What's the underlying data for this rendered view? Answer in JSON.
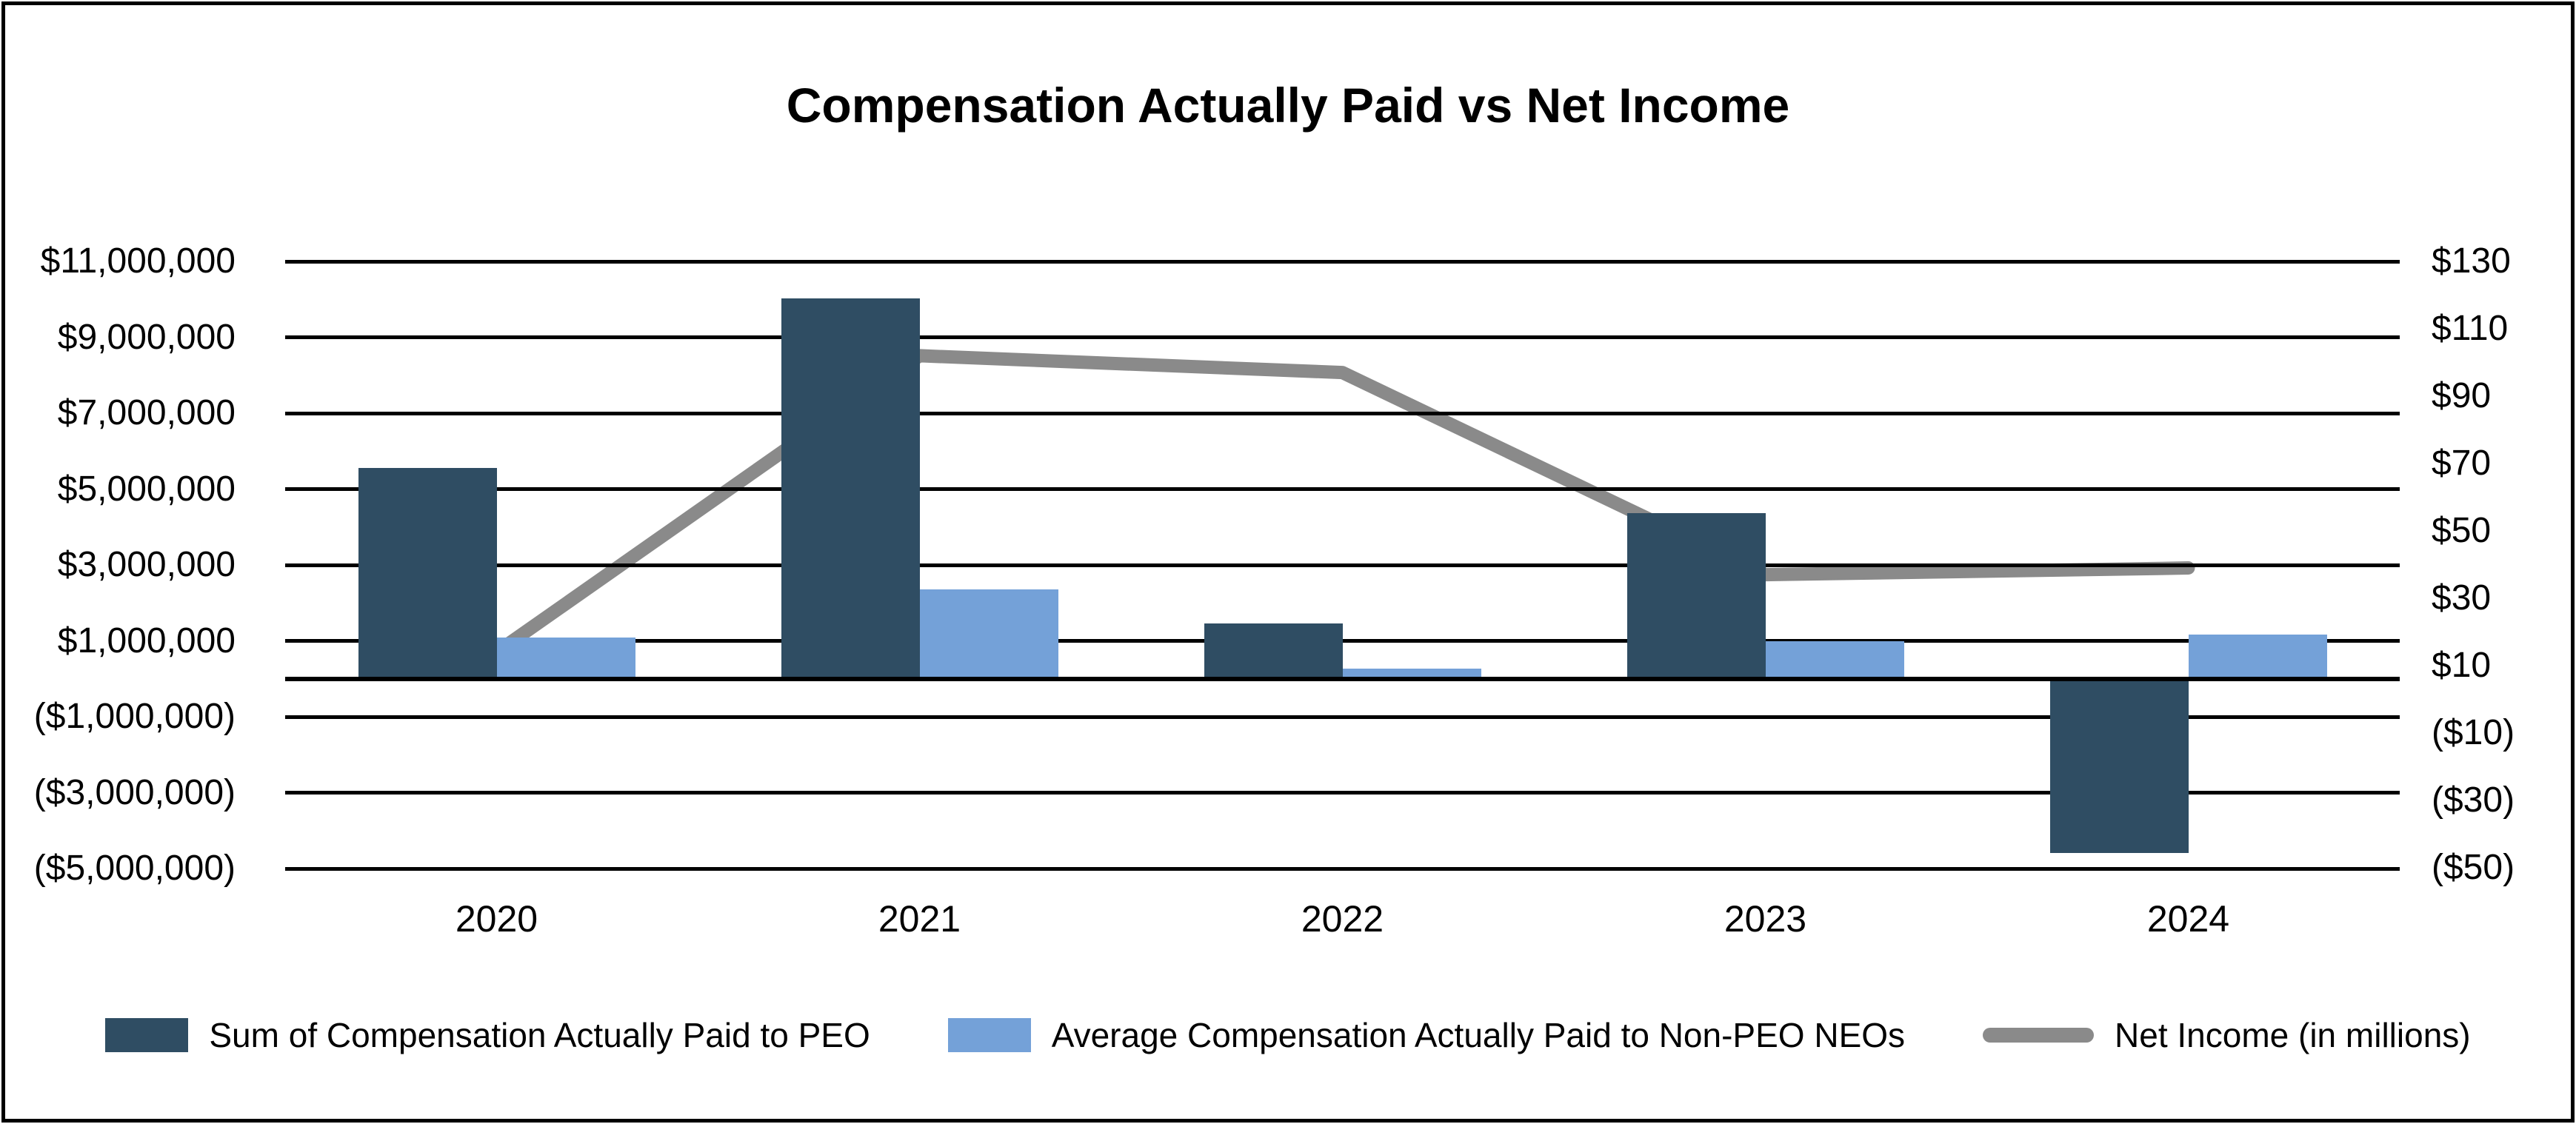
{
  "title": "Compensation Actually Paid vs Net Income",
  "legend": [
    {
      "label": "Sum of Compensation Actually Paid to PEO",
      "marker": "rect",
      "color": "#2F4D63"
    },
    {
      "label": "Average Compensation Actually Paid to Non-PEO NEOs",
      "marker": "rect",
      "color": "#74A1D8"
    },
    {
      "label": "Net Income (in millions)",
      "marker": "line",
      "color": "#8A8A8A"
    }
  ],
  "chart_data": {
    "type": "combo-bar-line",
    "title": "Compensation Actually Paid vs Net Income",
    "categories": [
      "2020",
      "2021",
      "2022",
      "2023",
      "2024"
    ],
    "series": [
      {
        "name": "Sum of Compensation Actually Paid to PEO",
        "type": "bar",
        "axis": "left",
        "color": "#2F4D63",
        "values": [
          5570000,
          10030000,
          1460000,
          4380000,
          -4580000
        ]
      },
      {
        "name": "Average Compensation Actually Paid to Non-PEO NEOs",
        "type": "bar",
        "axis": "left",
        "color": "#74A1D8",
        "values": [
          1100000,
          2370000,
          280000,
          1000000,
          1180000
        ]
      },
      {
        "name": "Net Income (in millions)",
        "type": "line",
        "axis": "right",
        "color": "#8A8A8A",
        "values": [
          14,
          102,
          97,
          37,
          39
        ]
      }
    ],
    "left_axis": {
      "min": -5000000,
      "max": 11000000,
      "major_unit": 2000000,
      "ticks": [
        {
          "value": 11000000,
          "label": "$11,000,000"
        },
        {
          "value": 9000000,
          "label": "$9,000,000"
        },
        {
          "value": 7000000,
          "label": "$7,000,000"
        },
        {
          "value": 5000000,
          "label": "$5,000,000"
        },
        {
          "value": 3000000,
          "label": "$3,000,000"
        },
        {
          "value": 1000000,
          "label": "$1,000,000"
        },
        {
          "value": -1000000,
          "label": "($1,000,000)"
        },
        {
          "value": -3000000,
          "label": "($3,000,000)"
        },
        {
          "value": -5000000,
          "label": "($5,000,000)"
        }
      ],
      "gridline_values": [
        11000000,
        9000000,
        7000000,
        5000000,
        3000000,
        1000000,
        0,
        -1000000,
        -3000000,
        -5000000
      ]
    },
    "right_axis": {
      "min": -50,
      "max": 130,
      "major_unit": 20,
      "ticks": [
        {
          "value": 130,
          "label": "$130"
        },
        {
          "value": 110,
          "label": "$110"
        },
        {
          "value": 90,
          "label": "$90"
        },
        {
          "value": 70,
          "label": "$70"
        },
        {
          "value": 50,
          "label": "$50"
        },
        {
          "value": 30,
          "label": "$30"
        },
        {
          "value": 10,
          "label": "$10"
        },
        {
          "value": -10,
          "label": "($10)"
        },
        {
          "value": -30,
          "label": "($30)"
        },
        {
          "value": -50,
          "label": "($50)"
        }
      ]
    },
    "x_axis": {
      "labels": [
        "2020",
        "2021",
        "2022",
        "2023",
        "2024"
      ]
    },
    "grid": "horizontal-black",
    "legend_position": "bottom"
  }
}
